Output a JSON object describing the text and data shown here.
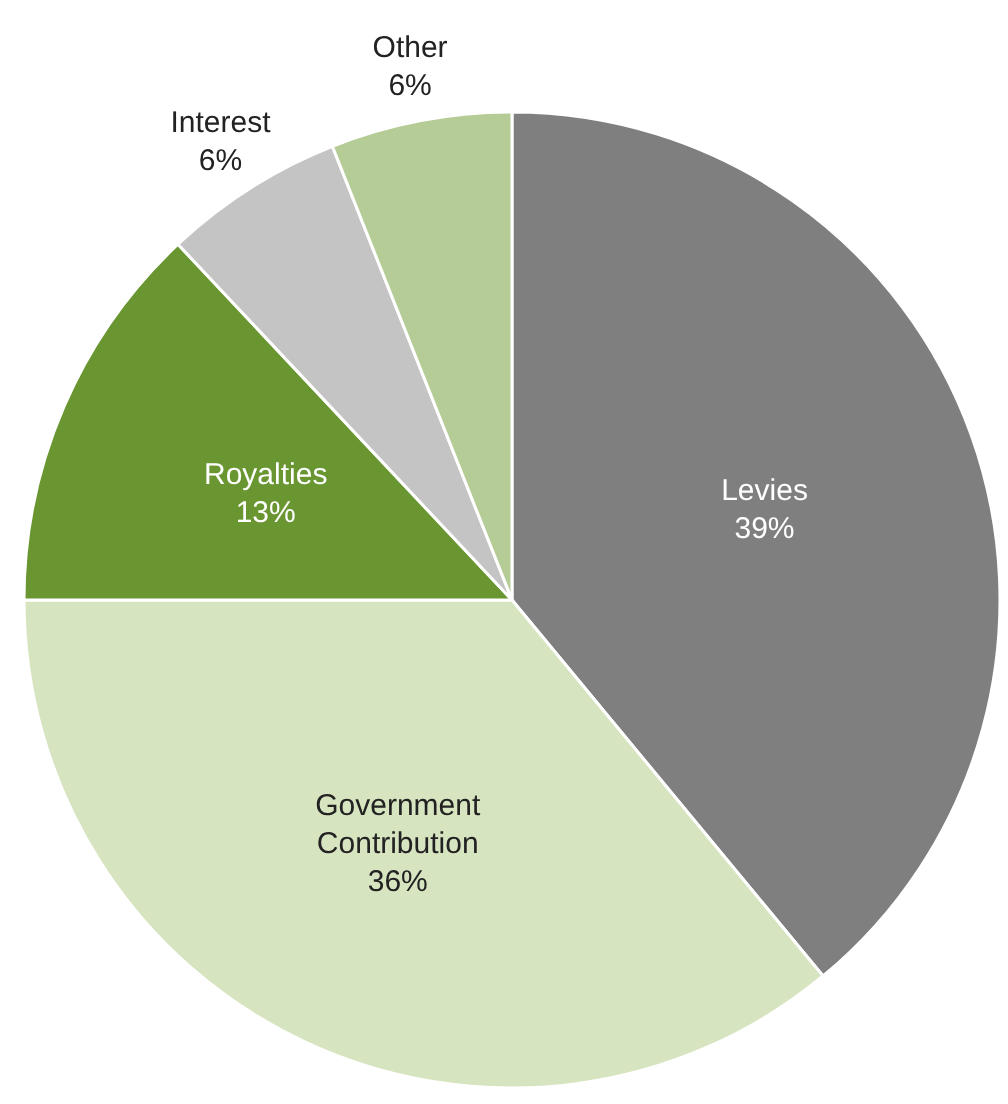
{
  "chart_data": {
    "type": "pie",
    "categories": [
      "Levies",
      "Government Contribution",
      "Royalties",
      "Interest",
      "Other"
    ],
    "values": [
      39,
      36,
      13,
      6,
      6
    ],
    "value_labels": [
      "39%",
      "36%",
      "13%",
      "6%",
      "6%"
    ],
    "colors": [
      "#7f7f7f",
      "#d7e4c0",
      "#6a9632",
      "#c4c4c4",
      "#b5cc97"
    ]
  }
}
